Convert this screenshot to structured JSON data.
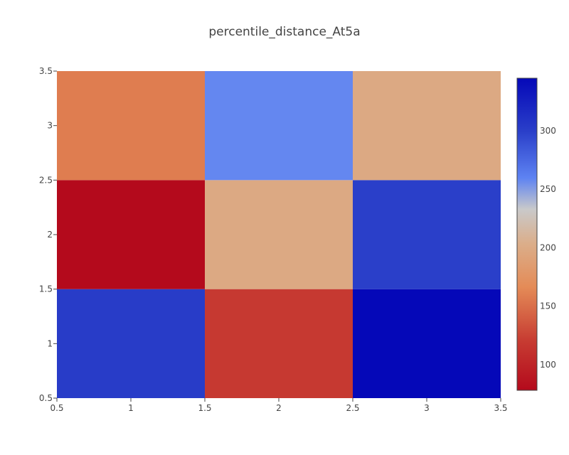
{
  "chart_data": {
    "type": "heatmap",
    "title": "percentile_distance_At5a",
    "xlabel": "",
    "ylabel": "",
    "x": [
      1,
      2,
      3
    ],
    "y": [
      1,
      2,
      3
    ],
    "z": [
      [
        302,
        118,
        345
      ],
      [
        78,
        198,
        300
      ],
      [
        158,
        258,
        198
      ]
    ],
    "xlim": [
      0.5,
      3.5
    ],
    "ylim": [
      0.5,
      3.5
    ],
    "x_ticks": [
      "0.5",
      "1",
      "1.5",
      "2",
      "2.5",
      "3",
      "3.5"
    ],
    "y_ticks": [
      "0.5",
      "1",
      "1.5",
      "2",
      "2.5",
      "3",
      "3.5"
    ],
    "colorscale": {
      "zmin": 78,
      "zmax": 345,
      "ticks": [
        "100",
        "150",
        "200",
        "250",
        "300"
      ],
      "stops": [
        [
          0.0,
          "#b40a1c"
        ],
        [
          0.16,
          "#c73c32"
        ],
        [
          0.33,
          "#e48b57"
        ],
        [
          0.47,
          "#dbae8a"
        ],
        [
          0.58,
          "#c9c9ca"
        ],
        [
          0.68,
          "#5e83f2"
        ],
        [
          0.83,
          "#2a3fc9"
        ],
        [
          1.0,
          "#0508b8"
        ]
      ]
    },
    "colorbar": true,
    "grid": false
  }
}
